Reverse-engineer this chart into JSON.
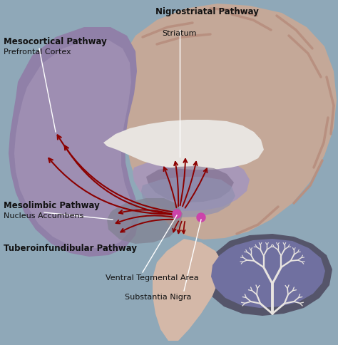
{
  "background_color": "#8fa8b8",
  "fig_width": 4.74,
  "fig_height": 4.84,
  "labels": {
    "nigrostriatal_pathway": "Nigrostriatal Pathway",
    "striatum": "Striatum",
    "mesocortical_pathway": "Mesocortical Pathway",
    "prefrontal_cortex": "Prefrontal Cortex",
    "mesolimbic_pathway": "Mesolimbic Pathway",
    "nucleus_accumbens": "Nucleus Accumbens",
    "tuberoinfundibular_pathway": "Tuberoinfundibular Pathway",
    "ventral_tegmental_area": "Ventral Tegmental Area",
    "substantia_nigra": "Substantia Nigra"
  },
  "colors": {
    "cerebrum_outer": "#c4a898",
    "cerebrum_inner": "#d4b8a8",
    "cerebrum_fold": "#b89080",
    "limbic_purple": "#9080a8",
    "limbic_light": "#b0a0c0",
    "corpus_callosum": "#e8e4e0",
    "brainstem": "#d4b8a8",
    "cerebellum_dark": "#55556a",
    "cerebellum_mid": "#7070a0",
    "cerebellum_white": "#e8e4e0",
    "thalamus": "#a898b8",
    "thalamus_dark": "#7a6a8a",
    "arrow_color": "#8b0000",
    "dot_color": "#cc44aa",
    "label_line": "#ffffff",
    "text_dark": "#111111",
    "basal_ganglia": "#808090",
    "inner_region": "#9090b0"
  }
}
